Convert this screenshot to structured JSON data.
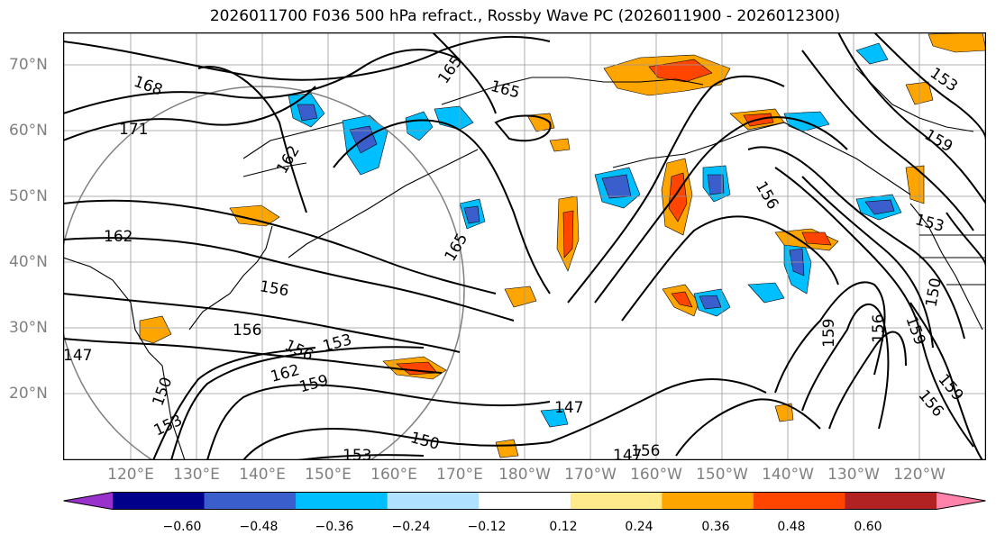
{
  "title": "2026011700 F036 500 hPa refract., Rossby Wave PC (2026011900 - 2026012300)",
  "lat_labels": [
    "70°N",
    "60°N",
    "50°N",
    "40°N",
    "30°N",
    "20°N"
  ],
  "lon_labels": [
    "120°E",
    "130°E",
    "140°E",
    "150°E",
    "160°E",
    "170°E",
    "180°W",
    "170°W",
    "160°W",
    "150°W",
    "140°W",
    "130°W",
    "120°W"
  ],
  "contour_labels": [
    "168",
    "171",
    "165",
    "165",
    "162",
    "162",
    "165",
    "156",
    "156",
    "153",
    "156",
    "162",
    "159",
    "147",
    "150",
    "153",
    "150",
    "147",
    "153",
    "147",
    "159",
    "156",
    "159",
    "156",
    "159",
    "153",
    "150",
    "153",
    "159",
    "156",
    "156"
  ],
  "colorbar": {
    "tick_labels": [
      "−0.60",
      "−0.48",
      "−0.36",
      "−0.24",
      "−0.12",
      "0.12",
      "0.24",
      "0.36",
      "0.48",
      "0.60"
    ],
    "colors": [
      "#9932cc",
      "#00008b",
      "#3a5fcd",
      "#00bfff",
      "#b0e2ff",
      "#ffffff",
      "#ffeb8c",
      "#ffa500",
      "#ff4500",
      "#b22222",
      "#ff82ab"
    ]
  }
}
